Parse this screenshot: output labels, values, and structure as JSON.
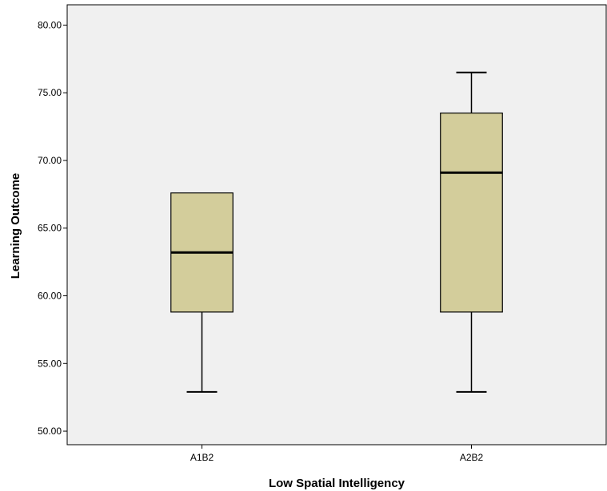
{
  "chart_data": {
    "type": "box",
    "title": "",
    "xlabel": "Low Spatial Intelligency",
    "ylabel": "Learning Outcome",
    "categories": [
      "A1B2",
      "A2B2"
    ],
    "boxes": [
      {
        "category": "A1B2",
        "min": 52.9,
        "q1": 58.8,
        "median": 63.2,
        "q3": 67.6,
        "max": 67.6
      },
      {
        "category": "A2B2",
        "min": 52.9,
        "q1": 58.8,
        "median": 69.1,
        "q3": 73.5,
        "max": 76.5
      }
    ],
    "ylim": [
      49,
      81.5
    ],
    "yticks": [
      50,
      55,
      60,
      65,
      70,
      75,
      80
    ],
    "ytick_labels": [
      "50.00",
      "55.00",
      "60.00",
      "65.00",
      "70.00",
      "75.00",
      "80.00"
    ],
    "grid": false,
    "legend": "none",
    "colors": {
      "box_fill": "#d3cd9b",
      "plot_background": "#f0f0f0",
      "stroke": "#000000"
    }
  }
}
